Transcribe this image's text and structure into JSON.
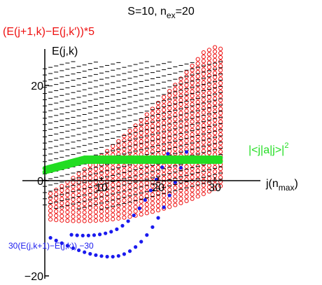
{
  "chart_data": {
    "type": "scatter",
    "title": "S=10, n",
    "title_sub": "ex",
    "title_tail": "=20",
    "xlabel": "j(n",
    "xlabel_sub": "max",
    "xlabel_tail": ")",
    "ylabel": "E(j,k)",
    "xlim": [
      0,
      31
    ],
    "ylim": [
      -20,
      27
    ],
    "x_ticks": [
      {
        "value": 0,
        "label": "0"
      },
      {
        "value": 10,
        "label": "10"
      },
      {
        "value": 20,
        "label": "20"
      },
      {
        "value": 30,
        "label": "30"
      }
    ],
    "y_ticks": [
      {
        "value": 20,
        "label": "20"
      },
      {
        "value": 0,
        "label": "0"
      },
      {
        "value": -20,
        "label": "−20"
      }
    ],
    "annotations": {
      "red_label": "(E(j+1,k)−E(j,k′))*5",
      "green_label": "|<j|a|j>|",
      "green_sup": "2",
      "blue_label": "30(E(j,k+1)−E(j,k))  −30"
    },
    "colors": {
      "red": "#ee1111",
      "green": "#22dd22",
      "blue": "#1a1aee",
      "black": "#000000"
    },
    "series": [
      {
        "style": "open-circle",
        "color": "red",
        "model": "E(j,k) = 0.9*k - 0.15*j + 0.012*j^2 - 8, for each k, j from k-5 to 31"
      },
      {
        "style": "dash",
        "color": "black",
        "model": "E(j,k) = 0.3*j + 1.3*k - 9"
      },
      {
        "style": "filled-circle",
        "color": "green",
        "model": "|<j|a|j>|^2 rising to ~4.8 at j=7, then flat"
      },
      {
        "style": "filled-circle",
        "color": "blue",
        "model": "30(E(j,k+1)-E(j,k)) - 30, curves from -12 at j=1 down to -16 and up to 6 at j=31"
      }
    ]
  }
}
